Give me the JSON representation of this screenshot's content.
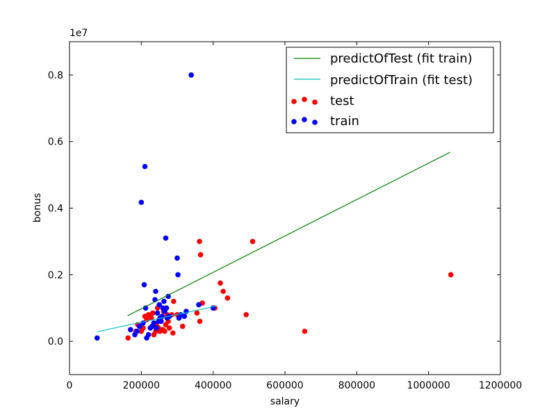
{
  "chart_data": {
    "type": "scatter",
    "title": "",
    "xlabel": "salary",
    "ylabel": "bonus",
    "y_offset_label": "1e7",
    "xlim": [
      0,
      1200000
    ],
    "ylim": [
      -1000000,
      9000000
    ],
    "x_ticks": [
      0,
      200000,
      400000,
      600000,
      800000,
      1000000,
      1200000
    ],
    "x_tick_labels": [
      "0",
      "200000",
      "400000",
      "600000",
      "800000",
      "1000000",
      "1200000"
    ],
    "y_ticks": [
      0,
      2000000,
      4000000,
      6000000,
      8000000
    ],
    "y_tick_labels": [
      "0.0",
      "0.2",
      "0.4",
      "0.6",
      "0.8"
    ],
    "grid": false,
    "legend_position": "top-right",
    "lines": [
      {
        "name": "predictOfTest (fit train)",
        "color": "#008000",
        "points": [
          [
            162000,
            770000
          ],
          [
            1060000,
            5680000
          ]
        ]
      },
      {
        "name": "predictOfTrain (fit test)",
        "color": "#00bfbf",
        "points": [
          [
            78000,
            290000
          ],
          [
            410000,
            1060000
          ]
        ]
      }
    ],
    "series": [
      {
        "name": "test",
        "color": "#ff0000",
        "points": [
          [
            163000,
            100000
          ],
          [
            185000,
            300000
          ],
          [
            190000,
            500000
          ],
          [
            200000,
            300000
          ],
          [
            205000,
            400000
          ],
          [
            210000,
            750000
          ],
          [
            215000,
            650000
          ],
          [
            220000,
            800000
          ],
          [
            228000,
            700000
          ],
          [
            232000,
            850000
          ],
          [
            235000,
            200000
          ],
          [
            240000,
            300000
          ],
          [
            242000,
            500000
          ],
          [
            245000,
            1000000
          ],
          [
            248000,
            400000
          ],
          [
            252000,
            300000
          ],
          [
            255000,
            600000
          ],
          [
            260000,
            350000
          ],
          [
            262000,
            900000
          ],
          [
            265000,
            300000
          ],
          [
            268000,
            500000
          ],
          [
            270000,
            1000000
          ],
          [
            272000,
            800000
          ],
          [
            275000,
            600000
          ],
          [
            278000,
            400000
          ],
          [
            285000,
            800000
          ],
          [
            288000,
            250000
          ],
          [
            290000,
            1200000
          ],
          [
            300000,
            800000
          ],
          [
            305000,
            700000
          ],
          [
            315000,
            450000
          ],
          [
            355000,
            850000
          ],
          [
            362000,
            3000000
          ],
          [
            363000,
            600000
          ],
          [
            365000,
            2600000
          ],
          [
            370000,
            1150000
          ],
          [
            405000,
            1000000
          ],
          [
            420000,
            1750000
          ],
          [
            428000,
            1500000
          ],
          [
            440000,
            1300000
          ],
          [
            492000,
            800000
          ],
          [
            510000,
            3000000
          ],
          [
            655000,
            300000
          ],
          [
            1062000,
            2000000
          ]
        ]
      },
      {
        "name": "train",
        "color": "#0000ff",
        "points": [
          [
            77000,
            100000
          ],
          [
            170000,
            350000
          ],
          [
            182000,
            200000
          ],
          [
            188000,
            300000
          ],
          [
            195000,
            450000
          ],
          [
            200000,
            4175000
          ],
          [
            205000,
            550000
          ],
          [
            208000,
            1700000
          ],
          [
            210000,
            5250000
          ],
          [
            212000,
            1000000
          ],
          [
            215000,
            100000
          ],
          [
            220000,
            200000
          ],
          [
            225000,
            400000
          ],
          [
            230000,
            450000
          ],
          [
            235000,
            550000
          ],
          [
            238000,
            1250000
          ],
          [
            240000,
            1500000
          ],
          [
            242000,
            400000
          ],
          [
            245000,
            850000
          ],
          [
            248000,
            600000
          ],
          [
            250000,
            1100000
          ],
          [
            252000,
            700000
          ],
          [
            255000,
            600000
          ],
          [
            258000,
            750000
          ],
          [
            260000,
            1000000
          ],
          [
            263000,
            1200000
          ],
          [
            265000,
            900000
          ],
          [
            268000,
            3100000
          ],
          [
            270000,
            1000000
          ],
          [
            272000,
            700000
          ],
          [
            275000,
            1350000
          ],
          [
            278000,
            750000
          ],
          [
            300000,
            2500000
          ],
          [
            302000,
            2000000
          ],
          [
            305000,
            700000
          ],
          [
            310000,
            800000
          ],
          [
            320000,
            750000
          ],
          [
            325000,
            900000
          ],
          [
            339000,
            8000000
          ],
          [
            360000,
            1100000
          ],
          [
            400000,
            1000000
          ]
        ]
      }
    ]
  }
}
